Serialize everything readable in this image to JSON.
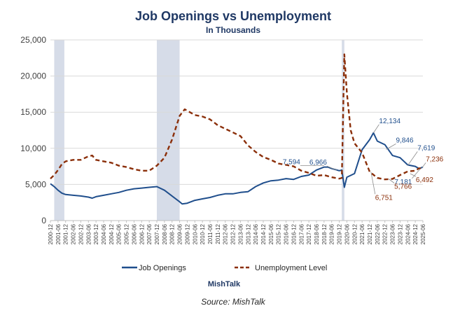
{
  "chart_data": {
    "type": "line",
    "title": "Job Openings vs Unemployment",
    "subtitle": "In Thousands",
    "xlabel": "",
    "ylabel": "",
    "ylim": [
      0,
      25000
    ],
    "yticks": [
      "0",
      "5,000",
      "10,000",
      "15,000",
      "20,000",
      "25,000"
    ],
    "x_tick_labels": [
      "2000-12",
      "2001-06",
      "2001-12",
      "2002-06",
      "2002-12",
      "2003-06",
      "2003-12",
      "2004-06",
      "2004-12",
      "2005-06",
      "2005-12",
      "2006-06",
      "2006-12",
      "2007-06",
      "2007-12",
      "2008-06",
      "2008-12",
      "2009-06",
      "2009-12",
      "2010-06",
      "2010-12",
      "2011-06",
      "2011-12",
      "2012-06",
      "2012-12",
      "2013-06",
      "2013-12",
      "2014-06",
      "2014-12",
      "2015-06",
      "2015-12",
      "2016-06",
      "2016-12",
      "2017-06",
      "2017-12",
      "2018-06",
      "2018-12",
      "2019-06",
      "2019-12",
      "2020-06",
      "2020-12",
      "2021-06",
      "2021-12",
      "2022-06",
      "2022-12",
      "2023-06",
      "2023-12",
      "2024-06",
      "2024-12",
      "2025-06"
    ],
    "recessions": [
      {
        "start": "2001-03",
        "end": "2001-11"
      },
      {
        "start": "2007-12",
        "end": "2009-06"
      },
      {
        "start": "2020-02",
        "end": "2020-04"
      }
    ],
    "grid": true,
    "legend_position": "bottom",
    "colors": {
      "job_openings": "#1f4e8c",
      "unemployment": "#8b2f0a",
      "recession": "#d6dce8",
      "grid": "#d9d9d9"
    },
    "series": [
      {
        "name": "Job Openings",
        "style": "solid",
        "points": [
          [
            "2000-12",
            5100
          ],
          [
            "2001-03",
            4700
          ],
          [
            "2001-06",
            4200
          ],
          [
            "2001-09",
            3800
          ],
          [
            "2001-12",
            3600
          ],
          [
            "2002-06",
            3500
          ],
          [
            "2002-12",
            3400
          ],
          [
            "2003-06",
            3250
          ],
          [
            "2003-09",
            3100
          ],
          [
            "2003-12",
            3300
          ],
          [
            "2004-06",
            3500
          ],
          [
            "2004-12",
            3700
          ],
          [
            "2005-06",
            3900
          ],
          [
            "2005-12",
            4200
          ],
          [
            "2006-06",
            4400
          ],
          [
            "2006-12",
            4500
          ],
          [
            "2007-06",
            4600
          ],
          [
            "2007-12",
            4700
          ],
          [
            "2008-06",
            4200
          ],
          [
            "2008-12",
            3400
          ],
          [
            "2009-06",
            2600
          ],
          [
            "2009-08",
            2300
          ],
          [
            "2009-12",
            2400
          ],
          [
            "2010-06",
            2800
          ],
          [
            "2010-12",
            3000
          ],
          [
            "2011-06",
            3200
          ],
          [
            "2011-12",
            3500
          ],
          [
            "2012-06",
            3700
          ],
          [
            "2012-12",
            3700
          ],
          [
            "2013-06",
            3900
          ],
          [
            "2013-12",
            4000
          ],
          [
            "2014-06",
            4700
          ],
          [
            "2014-12",
            5200
          ],
          [
            "2015-06",
            5500
          ],
          [
            "2015-12",
            5600
          ],
          [
            "2016-06",
            5800
          ],
          [
            "2016-12",
            5700
          ],
          [
            "2017-06",
            6100
          ],
          [
            "2017-12",
            6300
          ],
          [
            "2018-06",
            7000
          ],
          [
            "2018-12",
            7400
          ],
          [
            "2019-03",
            7400
          ],
          [
            "2019-06",
            7200
          ],
          [
            "2019-12",
            6900
          ],
          [
            "2020-02",
            7000
          ],
          [
            "2020-04",
            4600
          ],
          [
            "2020-06",
            6000
          ],
          [
            "2020-12",
            6500
          ],
          [
            "2021-06",
            9800
          ],
          [
            "2021-12",
            11200
          ],
          [
            "2022-03",
            12134
          ],
          [
            "2022-06",
            11000
          ],
          [
            "2022-12",
            10500
          ],
          [
            "2023-06",
            9000
          ],
          [
            "2023-12",
            8700
          ],
          [
            "2024-06",
            7700
          ],
          [
            "2024-12",
            7500
          ],
          [
            "2025-03",
            7181
          ],
          [
            "2025-06",
            7400
          ]
        ]
      },
      {
        "name": "Unemployment Level",
        "style": "dashed",
        "points": [
          [
            "2000-12",
            5800
          ],
          [
            "2001-03",
            6300
          ],
          [
            "2001-06",
            7000
          ],
          [
            "2001-09",
            7800
          ],
          [
            "2001-12",
            8200
          ],
          [
            "2002-06",
            8400
          ],
          [
            "2002-12",
            8400
          ],
          [
            "2003-06",
            8900
          ],
          [
            "2003-09",
            9000
          ],
          [
            "2003-12",
            8400
          ],
          [
            "2004-06",
            8200
          ],
          [
            "2004-12",
            8000
          ],
          [
            "2005-06",
            7600
          ],
          [
            "2005-12",
            7400
          ],
          [
            "2006-06",
            7100
          ],
          [
            "2006-12",
            6900
          ],
          [
            "2007-06",
            6900
          ],
          [
            "2007-12",
            7600
          ],
          [
            "2008-06",
            8700
          ],
          [
            "2008-12",
            11200
          ],
          [
            "2009-06",
            14500
          ],
          [
            "2009-10",
            15400
          ],
          [
            "2009-12",
            15200
          ],
          [
            "2010-06",
            14600
          ],
          [
            "2010-12",
            14400
          ],
          [
            "2011-06",
            14000
          ],
          [
            "2011-12",
            13200
          ],
          [
            "2012-06",
            12700
          ],
          [
            "2012-12",
            12200
          ],
          [
            "2013-06",
            11700
          ],
          [
            "2013-12",
            10400
          ],
          [
            "2014-06",
            9500
          ],
          [
            "2014-12",
            8800
          ],
          [
            "2015-06",
            8400
          ],
          [
            "2015-12",
            7900
          ],
          [
            "2016-06",
            7700
          ],
          [
            "2016-12",
            7500
          ],
          [
            "2017-06",
            6900
          ],
          [
            "2017-12",
            6600
          ],
          [
            "2018-06",
            6200
          ],
          [
            "2018-12",
            6300
          ],
          [
            "2019-06",
            6000
          ],
          [
            "2019-12",
            5800
          ],
          [
            "2020-02",
            5900
          ],
          [
            "2020-04",
            23000
          ],
          [
            "2020-06",
            17700
          ],
          [
            "2020-09",
            12500
          ],
          [
            "2020-12",
            10700
          ],
          [
            "2021-06",
            9400
          ],
          [
            "2021-12",
            6751
          ],
          [
            "2022-06",
            5900
          ],
          [
            "2022-12",
            5700
          ],
          [
            "2023-06",
            5766
          ],
          [
            "2023-12",
            6300
          ],
          [
            "2024-06",
            6800
          ],
          [
            "2024-12",
            6900
          ],
          [
            "2025-03",
            7236
          ],
          [
            "2025-06",
            7200
          ]
        ]
      }
    ],
    "annotations": [
      {
        "text": "7,594",
        "series": "Job Openings",
        "date": "2018-12",
        "value": 7594
      },
      {
        "text": "6,966",
        "series": "Job Openings",
        "date": "2019-10",
        "value": 6966
      },
      {
        "text": "12,134",
        "series": "Job Openings",
        "date": "2022-03",
        "value": 12134
      },
      {
        "text": "9,846",
        "series": "Job Openings",
        "date": "2023-01",
        "value": 9846
      },
      {
        "text": "7,619",
        "series": "Job Openings",
        "date": "2024-06",
        "value": 7619
      },
      {
        "text": "7,181",
        "series": "Job Openings",
        "date": "2025-04",
        "value": 7181
      },
      {
        "text": "6,751",
        "series": "Unemployment Level",
        "date": "2022-01",
        "value": 6751
      },
      {
        "text": "5,766",
        "series": "Unemployment Level",
        "date": "2023-03",
        "value": 5766
      },
      {
        "text": "6,492",
        "series": "Unemployment Level",
        "date": "2024-08",
        "value": 6492
      },
      {
        "text": "7,236",
        "series": "Unemployment Level",
        "date": "2025-05",
        "value": 7236
      }
    ]
  },
  "footer": {
    "brand": "MishTalk",
    "source": "Source: MishTalk"
  }
}
